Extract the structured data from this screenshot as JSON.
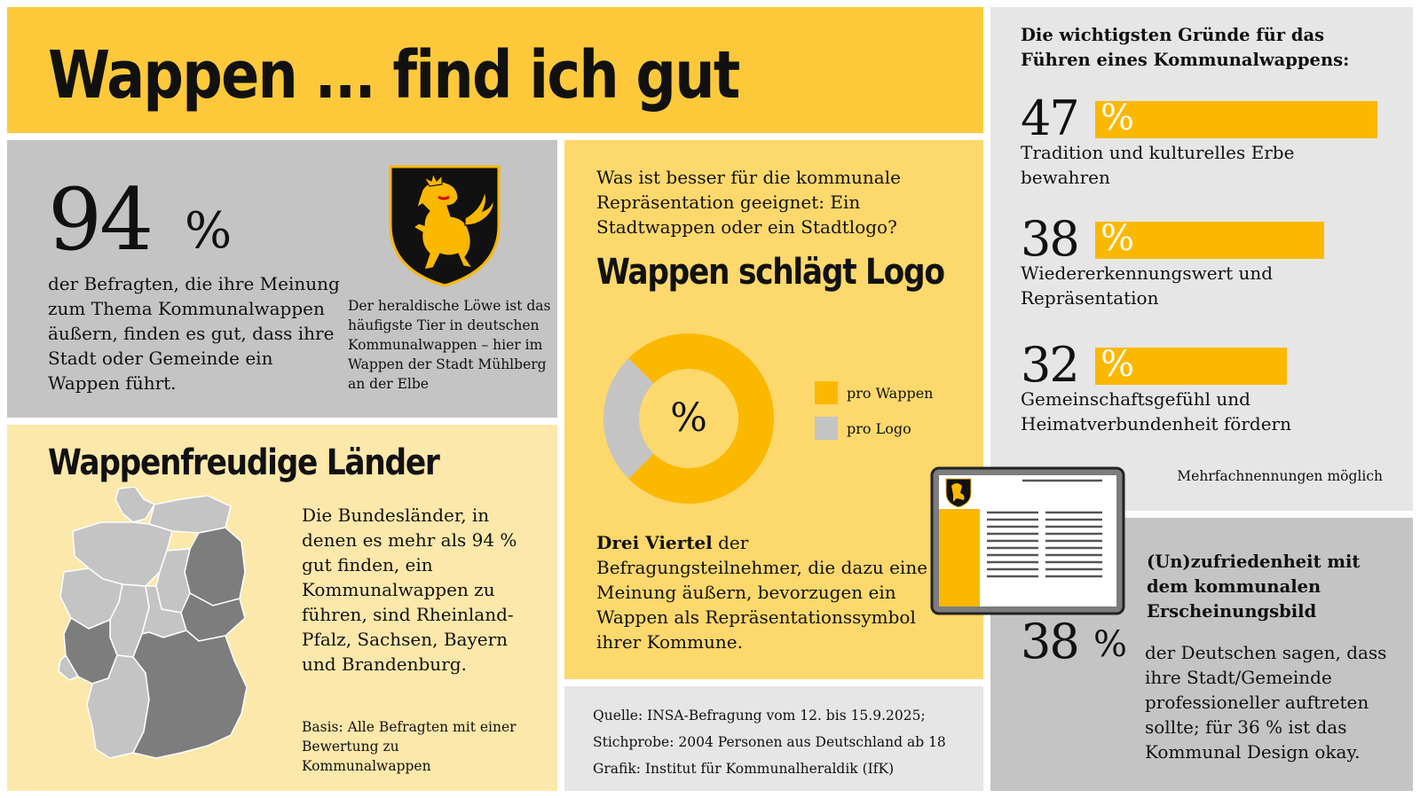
{
  "title": "Wappen ... find ich gut",
  "stat_94": {
    "value": "94",
    "unit": "%",
    "description": "der Befragten, die ihre Meinung zum Thema Kommunalwappen äußern, finden es gut, dass ihre Stadt oder Gemeinde ein Wappen führt.",
    "lion_caption": "Der heraldische Löwe ist das häufigste Tier in deutschen Kommunalwappen – hier im Wappen der Stadt Mühlberg an der Elbe"
  },
  "laender": {
    "title": "Wappenfreudige Länder",
    "text": "Die Bundesländer, in denen es mehr als 94 % gut finden, ein Kommunalwappen zu führen, sind Rheinland-Pfalz, Sachsen, Bayern und Brandenburg.",
    "basis": "Basis: Alle Befragten mit einer Bewertung zu Kommunalwappen",
    "highlight_color": "#7d7d7d",
    "base_color": "#c4c4c4"
  },
  "logo": {
    "question": "Was ist besser für die kommunale Repräsentation geeignet: Ein Stadtwappen oder ein Stadtlogo?",
    "title": "Wappen schlägt Logo",
    "donut_center": "%",
    "legend": [
      {
        "label": "pro Wappen",
        "color": "#fbb800"
      },
      {
        "label": "pro Logo",
        "color": "#c4c4c4"
      }
    ],
    "conclusion_bold": "Drei Viertel",
    "conclusion_rest": " der Befragungsteilnehmer, die dazu eine Meinung äußern, bevorzugen ein Wappen als Repräsentationssymbol ihrer Kommune."
  },
  "chart_data": {
    "type": "pie",
    "categories": [
      "pro Wappen",
      "pro Logo"
    ],
    "values": [
      75,
      25
    ]
  },
  "source": {
    "line1": "Quelle: INSA-Befragung vom 12. bis 15.9.2025;",
    "line2": "Stichprobe: 2004 Personen aus Deutschland ab 18",
    "line3": "Grafik: Institut für Kommunalheraldik (IfK)"
  },
  "reasons": {
    "title": "Die wichtigsten Gründe für das Führen eines Kommunalwappens:",
    "unit": "%",
    "items": [
      {
        "value": "47",
        "label": "Tradition und kulturelles Erbe bewahren",
        "fraction": 1.0
      },
      {
        "value": "38",
        "label": "Wiedererkennungswert und Repräsentation",
        "fraction": 0.81
      },
      {
        "value": "32",
        "label": "Gemeinschaftsgefühl und Heimatverbundenheit fördern",
        "fraction": 0.68
      }
    ],
    "note": "Mehrfachnennungen möglich"
  },
  "unzufrieden": {
    "title": "(Un)zufriedenheit mit dem kommunalen Erscheinungsbild",
    "value": "38",
    "unit": "%",
    "text": "der Deutschen sagen, dass ihre Stadt/Gemeinde professioneller auftreten sollte; für 36 % ist das Kommunal Design okay."
  },
  "colors": {
    "accent": "#fbb800",
    "title_bg": "#fdc93b",
    "panel_gray": "#c4c4c4",
    "panel_light": "#e6e6e6"
  }
}
